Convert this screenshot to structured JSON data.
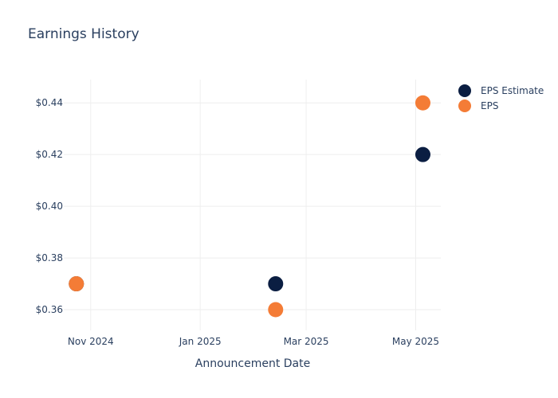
{
  "chart_data": {
    "type": "scatter",
    "title": "Earnings History",
    "xlabel": "Announcement Date",
    "ylabel": "",
    "x_ticks": [
      "Nov 2024",
      "Jan 2025",
      "Mar 2025",
      "May 2025"
    ],
    "y_ticks": [
      "$0.36",
      "$0.38",
      "$0.40",
      "$0.42",
      "$0.44"
    ],
    "ylim": [
      0.352,
      0.449
    ],
    "xlim": [
      "2024-10-17",
      "2025-05-15"
    ],
    "grid": true,
    "legend_position": "top-right",
    "series": [
      {
        "name": "EPS Estimate",
        "color": "#0b1e42",
        "points": [
          {
            "x": "2024-10-24",
            "y": 0.37
          },
          {
            "x": "2025-02-12",
            "y": 0.37
          },
          {
            "x": "2025-05-05",
            "y": 0.42
          }
        ]
      },
      {
        "name": "EPS",
        "color": "#f47c36",
        "points": [
          {
            "x": "2024-10-24",
            "y": 0.37
          },
          {
            "x": "2025-02-12",
            "y": 0.36
          },
          {
            "x": "2025-05-05",
            "y": 0.44
          }
        ]
      }
    ]
  }
}
